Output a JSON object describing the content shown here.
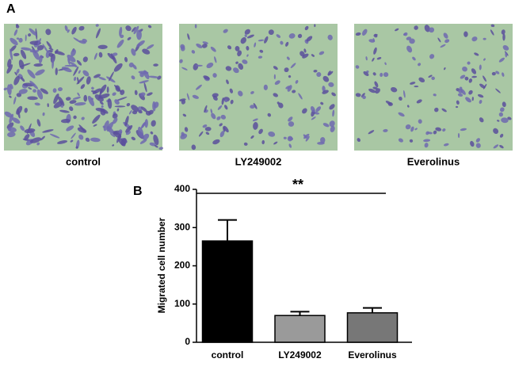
{
  "panel_a": {
    "label": "A",
    "images": [
      {
        "label": "control"
      },
      {
        "label": "LY249002"
      },
      {
        "label": "Everolinus"
      }
    ]
  },
  "panel_b": {
    "label": "B"
  },
  "chart_data": {
    "type": "bar",
    "y_label": "Migrated cell number",
    "categories": [
      "control",
      "LY249002",
      "Everolinus"
    ],
    "values": [
      265,
      70,
      77
    ],
    "errors": [
      55,
      10,
      13
    ],
    "colors": [
      "#000000",
      "#9a9a9a",
      "#777777"
    ],
    "ylim": [
      0,
      400
    ],
    "yticks": [
      0,
      100,
      200,
      300,
      400
    ],
    "annotation": "**"
  }
}
